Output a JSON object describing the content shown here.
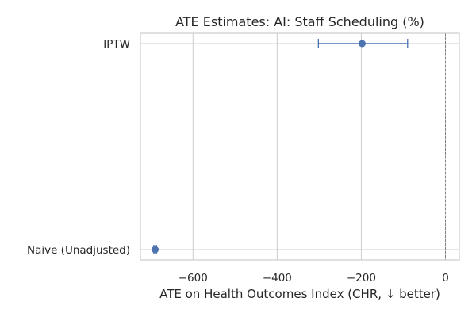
{
  "chart_data": {
    "type": "scatter",
    "subtype": "forest-plot",
    "title": "ATE Estimates: AI: Staff Scheduling (%)",
    "xlabel": "ATE on Health Outcomes Index (CHR, ↓ better)",
    "ylabel": "",
    "xlim": [
      -725,
      33
    ],
    "xticks": [
      -600,
      -400,
      -200,
      0
    ],
    "xtick_labels": [
      "−600",
      "−400",
      "−200",
      "0"
    ],
    "categories": [
      "IPTW",
      "Naive (Unadjusted)"
    ],
    "estimates": [
      {
        "label": "IPTW",
        "value": -198,
        "ci_low": -302,
        "ci_high": -90
      },
      {
        "label": "Naive (Unadjusted)",
        "value": -690,
        "ci_low": -693,
        "ci_high": -687
      }
    ],
    "reference_line": {
      "x": 0,
      "style": "dashed"
    },
    "grid": true,
    "legend": "none",
    "colors": {
      "point": "#4c72b0",
      "grid": "#cccccc",
      "reference": "#808080",
      "text": "#262626"
    }
  }
}
